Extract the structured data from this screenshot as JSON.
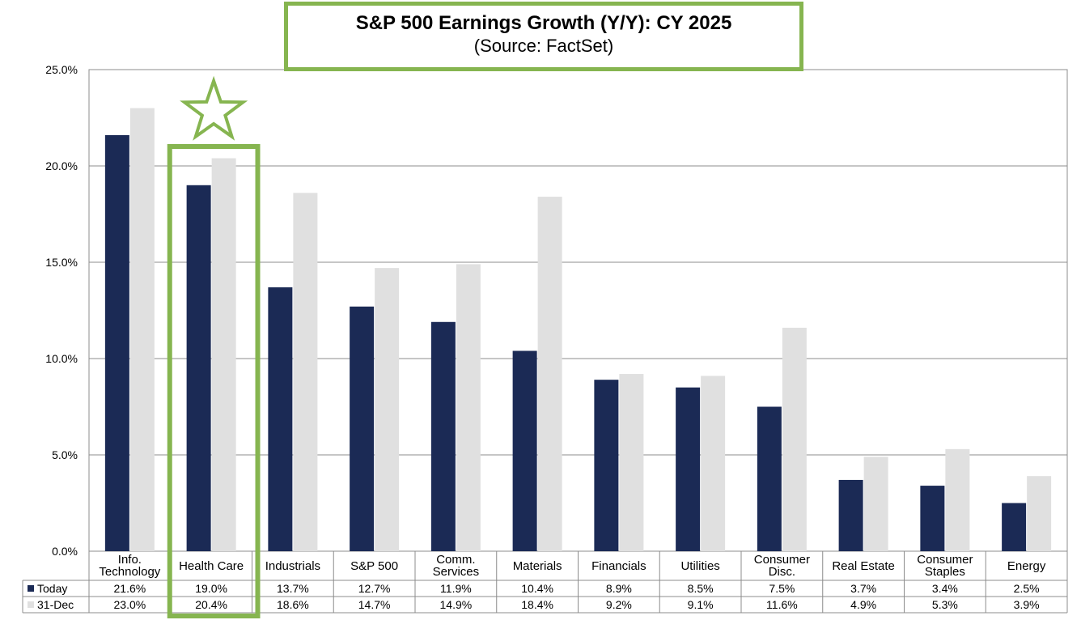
{
  "title": {
    "main": "S&P 500 Earnings Growth (Y/Y): CY 2025",
    "sub": "(Source: FactSet)"
  },
  "colors": {
    "today": "#1b2a55",
    "dec31": "#e0e0e0",
    "highlight": "#86b550",
    "grid": "#8c8c8c",
    "axis_text": "#000000"
  },
  "chart_data": {
    "type": "bar",
    "title": "S&P 500 Earnings Growth (Y/Y): CY 2025",
    "subtitle": "(Source: FactSet)",
    "categories": [
      [
        "Info.",
        "Technology"
      ],
      [
        "Health Care"
      ],
      [
        "Industrials"
      ],
      [
        "S&P 500"
      ],
      [
        "Comm.",
        "Services"
      ],
      [
        "Materials"
      ],
      [
        "Financials"
      ],
      [
        "Utilities"
      ],
      [
        "Consumer",
        "Disc."
      ],
      [
        "Real Estate"
      ],
      [
        "Consumer",
        "Staples"
      ],
      [
        "Energy"
      ]
    ],
    "series": [
      {
        "name": "Today",
        "values": [
          21.6,
          19.0,
          13.7,
          12.7,
          11.9,
          10.4,
          8.9,
          8.5,
          7.5,
          3.7,
          3.4,
          2.5
        ],
        "labels": [
          "21.6%",
          "19.0%",
          "13.7%",
          "12.7%",
          "11.9%",
          "10.4%",
          "8.9%",
          "8.5%",
          "7.5%",
          "3.7%",
          "3.4%",
          "2.5%"
        ]
      },
      {
        "name": "31-Dec",
        "values": [
          23.0,
          20.4,
          18.6,
          14.7,
          14.9,
          18.4,
          9.2,
          9.1,
          11.6,
          4.9,
          5.3,
          3.9
        ],
        "labels": [
          "23.0%",
          "20.4%",
          "18.6%",
          "14.7%",
          "14.9%",
          "18.4%",
          "9.2%",
          "9.1%",
          "11.6%",
          "4.9%",
          "5.3%",
          "3.9%"
        ]
      }
    ],
    "yticks": [
      "0.0%",
      "5.0%",
      "10.0%",
      "15.0%",
      "20.0%",
      "25.0%"
    ],
    "ytick_values": [
      0,
      5,
      10,
      15,
      20,
      25
    ],
    "ylim": [
      0,
      25
    ],
    "grid": true,
    "legend": "data-table",
    "highlight_category": "Health Care",
    "annotation": "star-icon"
  }
}
